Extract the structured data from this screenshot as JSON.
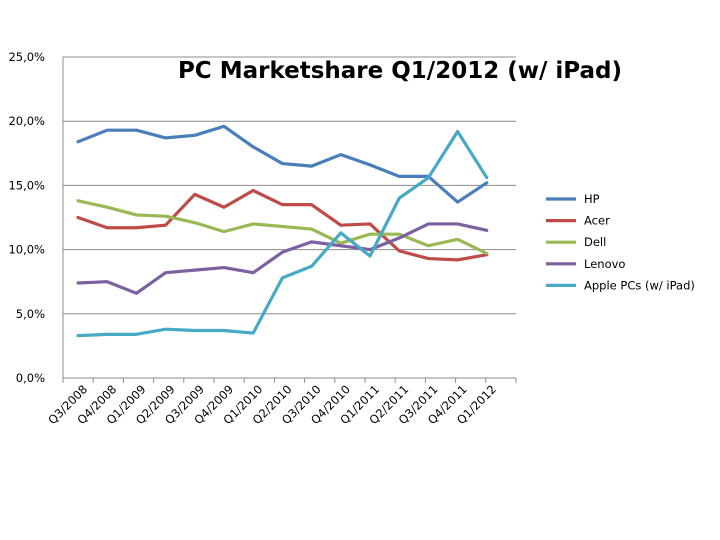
{
  "chart_data": {
    "type": "line",
    "title": "PC Marketshare Q1/2012 (w/ iPad)",
    "xlabel": "",
    "ylabel": "",
    "ylim": [
      0,
      25
    ],
    "y_ticks": [
      "0,0%",
      "5,0%",
      "10,0%",
      "15,0%",
      "20,0%",
      "25,0%"
    ],
    "categories": [
      "Q3/2008",
      "Q4/2008",
      "Q1/2009",
      "Q2/2009",
      "Q3/2009",
      "Q4/2009",
      "Q1/2010",
      "Q2/2010",
      "Q3/2010",
      "Q4/2010",
      "Q1/2011",
      "Q2/2011",
      "Q3/2011",
      "Q4/2011",
      "Q1/2012"
    ],
    "grid": true,
    "legend_position": "right",
    "series": [
      {
        "name": "HP",
        "color": "#4a7ebb",
        "values": [
          18.4,
          19.3,
          19.3,
          18.7,
          18.9,
          19.6,
          18.0,
          16.7,
          16.5,
          17.4,
          16.6,
          15.7,
          15.7,
          13.7,
          15.2
        ]
      },
      {
        "name": "Acer",
        "color": "#be4b48",
        "values": [
          12.5,
          11.7,
          11.7,
          11.9,
          14.3,
          13.3,
          14.6,
          13.5,
          13.5,
          11.9,
          12.0,
          9.9,
          9.3,
          9.2,
          9.6
        ]
      },
      {
        "name": "Dell",
        "color": "#98b954",
        "values": [
          13.8,
          13.3,
          12.7,
          12.6,
          12.1,
          11.4,
          12.0,
          11.8,
          11.6,
          10.5,
          11.2,
          11.2,
          10.3,
          10.8,
          9.7
        ]
      },
      {
        "name": "Lenovo",
        "color": "#7d60a0",
        "values": [
          7.4,
          7.5,
          6.6,
          8.2,
          8.4,
          8.6,
          8.2,
          9.8,
          10.6,
          10.3,
          10.0,
          10.9,
          12.0,
          12.0,
          11.5
        ]
      },
      {
        "name": "Apple PCs (w/ iPad)",
        "color": "#46aac5",
        "values": [
          3.3,
          3.4,
          3.4,
          3.8,
          3.7,
          3.7,
          3.5,
          7.8,
          8.7,
          11.3,
          9.5,
          14.0,
          15.6,
          19.2,
          15.6
        ]
      }
    ]
  }
}
